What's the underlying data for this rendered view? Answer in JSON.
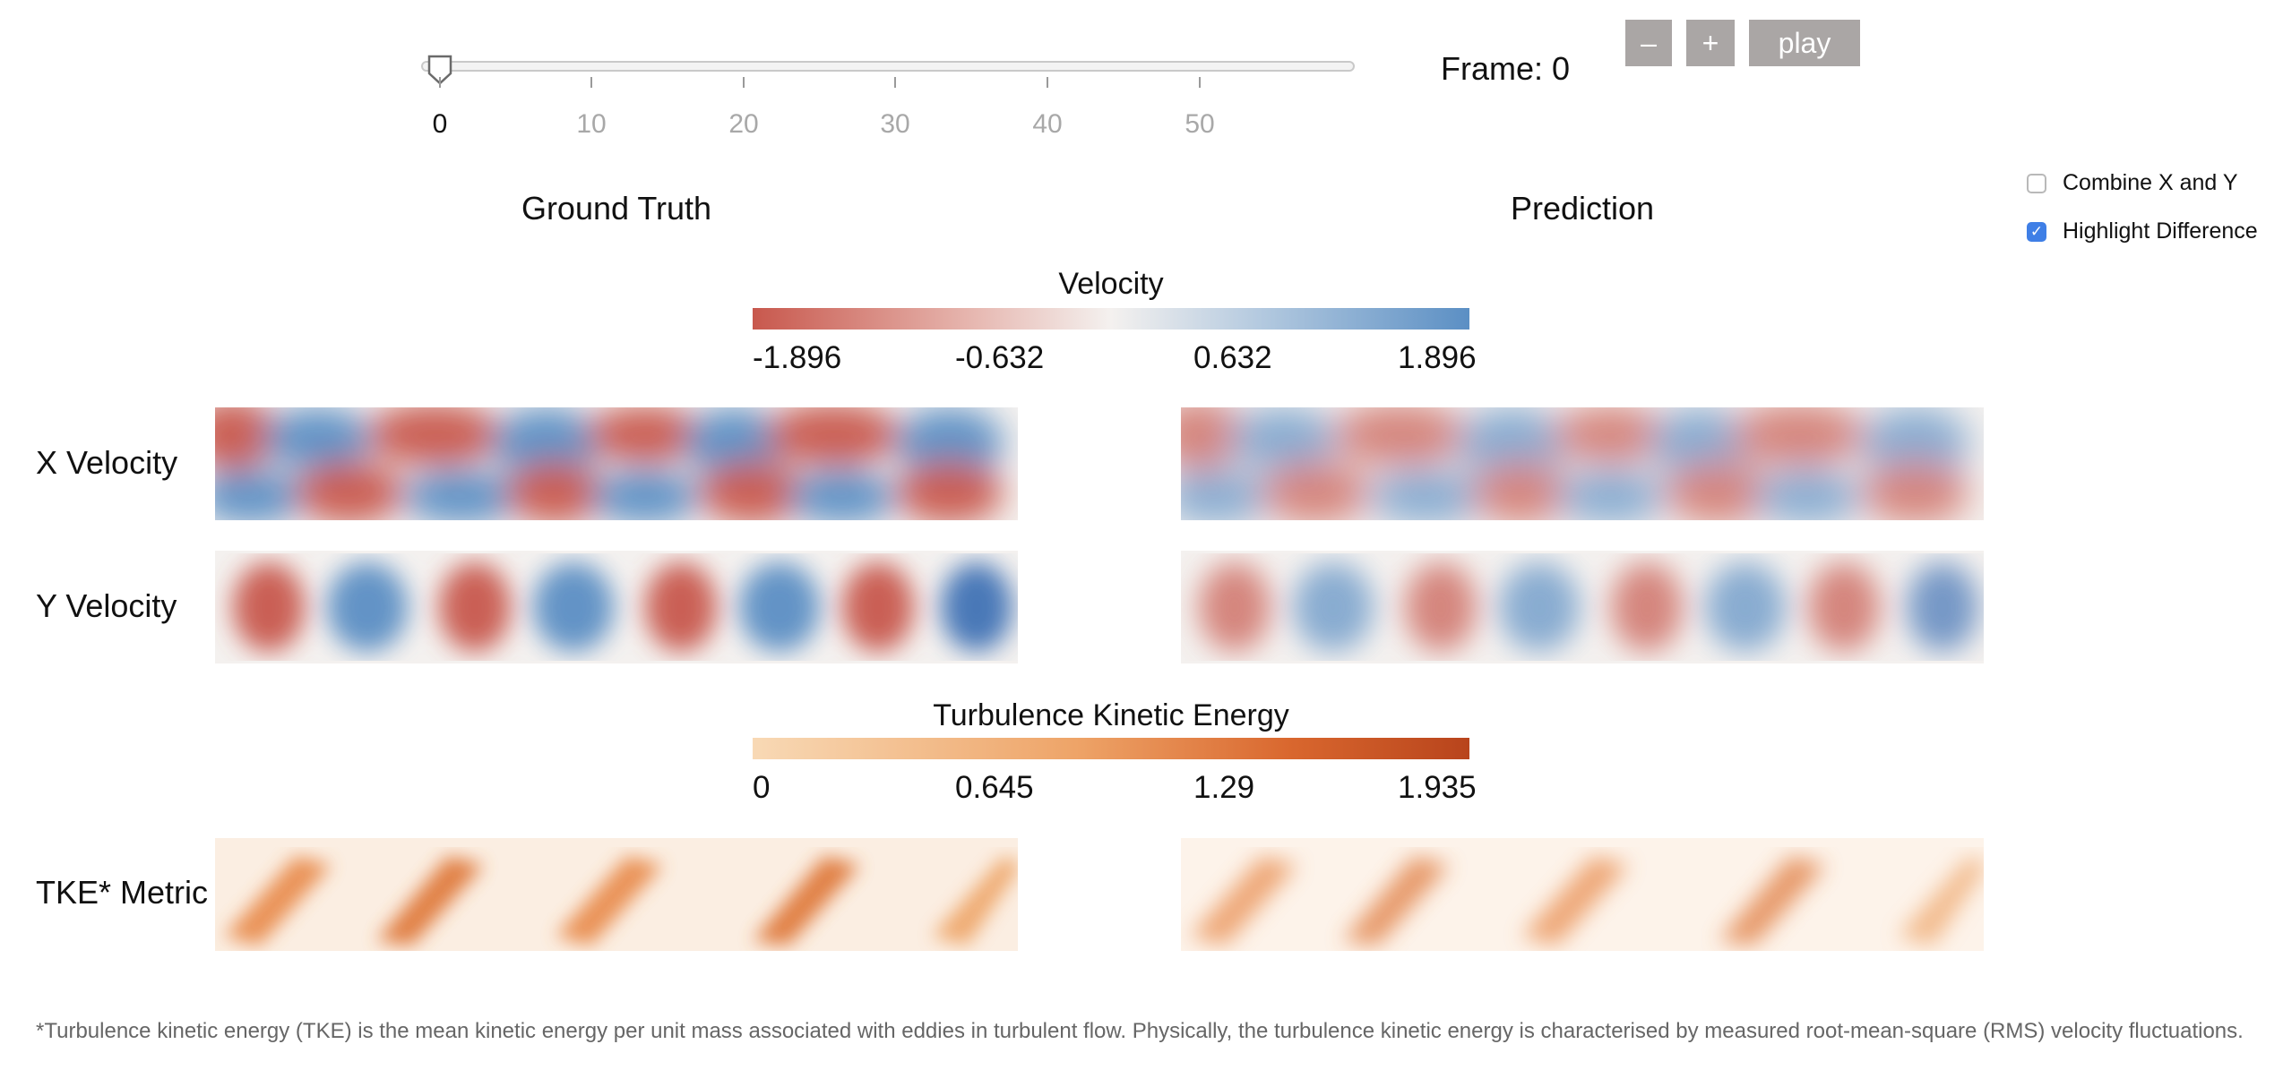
{
  "slider": {
    "ticks": [
      "0",
      "10",
      "20",
      "30",
      "40",
      "50"
    ],
    "current_value": 0
  },
  "frame": {
    "label": "Frame: 0"
  },
  "buttons": {
    "minus": "–",
    "plus": "+",
    "play": "play"
  },
  "options": {
    "combine": {
      "label": "Combine X and Y",
      "checked": false
    },
    "highlight": {
      "label": "Highlight Difference",
      "checked": true
    }
  },
  "columns": {
    "left": "Ground Truth",
    "right": "Prediction"
  },
  "velocity_colorbar": {
    "title": "Velocity",
    "labels": [
      "-1.896",
      "-0.632",
      "0.632",
      "1.896"
    ],
    "colors": {
      "low": "#c8584d",
      "mid": "#f4f1ef",
      "high": "#5b8fc4"
    }
  },
  "tke_colorbar": {
    "title": "Turbulence Kinetic Energy",
    "labels": [
      "0",
      "0.645",
      "1.29",
      "1.935"
    ],
    "colors": {
      "low": "#f8d9b5",
      "high": "#b8441c"
    }
  },
  "rows": {
    "x_velocity": "X Velocity",
    "y_velocity": "Y Velocity",
    "tke": "TKE* Metric"
  },
  "footnote": "*Turbulence kinetic energy (TKE) is the mean kinetic energy per unit mass associated with eddies in turbulent flow. Physically, the turbulence kinetic energy is characterised by measured root-mean-square (RMS) velocity fluctuations."
}
